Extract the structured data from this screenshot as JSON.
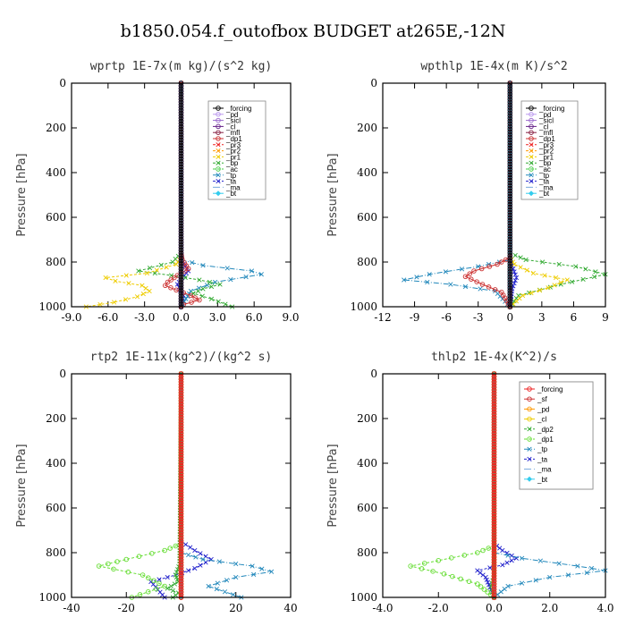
{
  "figure_title": "b1850.054.f_outofbox  BUDGET at265E,-12N",
  "chart_data": [
    {
      "type": "line",
      "title": "wprtp  1E-7x(m kg)/(s^2 kg)",
      "ylabel": "Pressure [hPa]",
      "xlim": [
        -9,
        9
      ],
      "ylim": [
        1000,
        0
      ],
      "xticks": [
        -9,
        -6,
        -3,
        0,
        3,
        6,
        9
      ],
      "xtick_labels": [
        "-9.0",
        "-6.0",
        "-3.0",
        "0.0",
        "3.0",
        "6.0",
        "9.0"
      ],
      "yticks": [
        0,
        200,
        400,
        600,
        800,
        1000
      ],
      "legend_position": "top-right",
      "series": [
        {
          "name": "_forcing",
          "color": "#000000",
          "marker": "circle",
          "dash": "",
          "x": [
            0.0,
            0.0
          ],
          "p": [
            0,
            1000
          ]
        },
        {
          "name": "_pd",
          "color": "#bb99ee",
          "marker": "circle",
          "dash": "",
          "x": [
            0.0,
            0.0
          ],
          "p": [
            0,
            1000
          ]
        },
        {
          "name": "_sicl",
          "color": "#9966cc",
          "marker": "circle",
          "dash": "",
          "x": [
            0.0,
            0.0
          ],
          "p": [
            0,
            1000
          ]
        },
        {
          "name": "_cl",
          "color": "#662288",
          "marker": "circle",
          "dash": "",
          "x": [
            0.0,
            0.0
          ],
          "p": [
            0,
            1000
          ]
        },
        {
          "name": "_mfl",
          "color": "#882244",
          "marker": "circle",
          "dash": "",
          "x": [
            0.0,
            0.0
          ],
          "p": [
            0,
            1000
          ]
        },
        {
          "name": "_dp1",
          "color": "#cc3333",
          "marker": "circle",
          "dash": "",
          "x": [
            0.0,
            0.1,
            0.6,
            -0.3,
            -1.1,
            -1.3,
            -0.4,
            0.8,
            1.5,
            0.2,
            0.0
          ],
          "p": [
            760,
            790,
            830,
            860,
            890,
            905,
            925,
            950,
            970,
            990,
            1000
          ]
        },
        {
          "name": "_pr3",
          "color": "#ee2222",
          "marker": "x",
          "dash": "3,2",
          "x": [
            0.0,
            0.0
          ],
          "p": [
            0,
            1000
          ]
        },
        {
          "name": "_pr2",
          "color": "#ff9900",
          "marker": "x",
          "dash": "3,2",
          "x": [
            0.0,
            0.0
          ],
          "p": [
            0,
            1000
          ]
        },
        {
          "name": "_pr1",
          "color": "#eecc00",
          "marker": "x",
          "dash": "3,2",
          "x": [
            0.0,
            -0.4,
            -2.8,
            -6.2,
            -5.4,
            -3.2,
            -2.6,
            -3.6,
            -5.5,
            -7.8
          ],
          "p": [
            780,
            810,
            850,
            870,
            885,
            905,
            930,
            955,
            980,
            1000
          ]
        },
        {
          "name": "_bp",
          "color": "#33aa33",
          "marker": "x",
          "dash": "3,2",
          "x": [
            0.0,
            -0.7,
            -3.5,
            -0.8,
            1.5,
            3.2,
            1.8,
            1.0,
            2.5,
            4.2
          ],
          "p": [
            760,
            800,
            840,
            860,
            880,
            900,
            920,
            940,
            965,
            1000
          ]
        },
        {
          "name": "_ac",
          "color": "#44cc44",
          "marker": "circle",
          "dash": "3,2",
          "x": [
            0.0,
            0.0
          ],
          "p": [
            0,
            1000
          ]
        },
        {
          "name": "_tp",
          "color": "#2288bb",
          "marker": "x",
          "dash": "6,2,1,2",
          "x": [
            0.0,
            1.8,
            5.8,
            6.6,
            2.8,
            0.8,
            0.0
          ],
          "p": [
            790,
            815,
            840,
            855,
            890,
            930,
            1000
          ]
        },
        {
          "name": "_ta",
          "color": "#2222cc",
          "marker": "x",
          "dash": "3,2",
          "x": [
            0.0,
            0.2,
            0.6,
            0.1,
            -0.3,
            0.2,
            0.0
          ],
          "p": [
            790,
            810,
            840,
            870,
            900,
            950,
            1000
          ]
        },
        {
          "name": "_ma",
          "color": "#77aadd",
          "marker": "none",
          "dash": "8,3",
          "x": [
            0.0,
            0.0
          ],
          "p": [
            0,
            1000
          ]
        },
        {
          "name": "_bt",
          "color": "#33ccee",
          "marker": "diamond",
          "dash": "",
          "x": [
            0.0,
            0.0
          ],
          "p": [
            0,
            1000
          ]
        }
      ]
    },
    {
      "type": "line",
      "title": "wpthlp  1E-4x(m K)/s^2",
      "ylabel": "Pressure [hPa]",
      "xlim": [
        -12,
        9
      ],
      "ylim": [
        1000,
        0
      ],
      "xticks": [
        -12,
        -9,
        -6,
        -3,
        0,
        3,
        6,
        9
      ],
      "xtick_labels": [
        "-12",
        "-9",
        "-6",
        "-3",
        "0",
        "3",
        "6",
        "9"
      ],
      "yticks": [
        0,
        200,
        400,
        600,
        800,
        1000
      ],
      "legend_position": "top-right",
      "series": [
        {
          "name": "_forcing",
          "color": "#000000",
          "marker": "circle",
          "dash": "",
          "x": [
            0.0,
            0.0
          ],
          "p": [
            0,
            1000
          ]
        },
        {
          "name": "_pd",
          "color": "#bb99ee",
          "marker": "circle",
          "dash": "",
          "x": [
            0.0,
            0.0
          ],
          "p": [
            0,
            1000
          ]
        },
        {
          "name": "_sicl",
          "color": "#9966cc",
          "marker": "circle",
          "dash": "",
          "x": [
            0.0,
            0.0
          ],
          "p": [
            0,
            1000
          ]
        },
        {
          "name": "_cl",
          "color": "#662288",
          "marker": "circle",
          "dash": "",
          "x": [
            0.0,
            0.0
          ],
          "p": [
            0,
            1000
          ]
        },
        {
          "name": "_mfl",
          "color": "#882244",
          "marker": "circle",
          "dash": "",
          "x": [
            0.0,
            0.0
          ],
          "p": [
            0,
            1000
          ]
        },
        {
          "name": "_dp1",
          "color": "#cc3333",
          "marker": "circle",
          "dash": "",
          "x": [
            0.0,
            -1.2,
            -3.4,
            -4.2,
            -2.6,
            -0.8,
            0.0
          ],
          "p": [
            780,
            810,
            840,
            865,
            900,
            935,
            1000
          ]
        },
        {
          "name": "_pr3",
          "color": "#ee2222",
          "marker": "x",
          "dash": "3,2",
          "x": [
            0.0,
            0.0
          ],
          "p": [
            0,
            1000
          ]
        },
        {
          "name": "_pr2",
          "color": "#ff9900",
          "marker": "x",
          "dash": "3,2",
          "x": [
            0.0,
            0.0
          ],
          "p": [
            0,
            1000
          ]
        },
        {
          "name": "_pr1",
          "color": "#eecc00",
          "marker": "x",
          "dash": "3,2",
          "x": [
            0.0,
            0.4,
            2.2,
            5.4,
            3.6,
            1.2,
            0.0
          ],
          "p": [
            780,
            810,
            850,
            880,
            915,
            950,
            1000
          ]
        },
        {
          "name": "_bp",
          "color": "#33aa33",
          "marker": "x",
          "dash": "3,2",
          "x": [
            0.0,
            1.5,
            6.2,
            9.0,
            4.8,
            0.8,
            0.0
          ],
          "p": [
            760,
            790,
            820,
            855,
            900,
            950,
            1000
          ]
        },
        {
          "name": "_ac",
          "color": "#44cc44",
          "marker": "circle",
          "dash": "3,2",
          "x": [
            0.0,
            0.0
          ],
          "p": [
            0,
            1000
          ]
        },
        {
          "name": "_tp",
          "color": "#2288bb",
          "marker": "x",
          "dash": "6,2,1,2",
          "x": [
            0.0,
            -3.0,
            -7.6,
            -10.0,
            -5.6,
            -1.4,
            0.0
          ],
          "p": [
            790,
            820,
            855,
            880,
            900,
            930,
            1000
          ]
        },
        {
          "name": "_ta",
          "color": "#2222cc",
          "marker": "x",
          "dash": "3,2",
          "x": [
            0.0,
            0.3,
            0.6,
            0.2,
            0.0
          ],
          "p": [
            790,
            830,
            870,
            920,
            1000
          ]
        },
        {
          "name": "_ma",
          "color": "#77aadd",
          "marker": "none",
          "dash": "8,3",
          "x": [
            0.0,
            0.0
          ],
          "p": [
            0,
            1000
          ]
        },
        {
          "name": "_bt",
          "color": "#33ccee",
          "marker": "diamond",
          "dash": "",
          "x": [
            0.0,
            0.0
          ],
          "p": [
            0,
            1000
          ]
        }
      ]
    },
    {
      "type": "line",
      "title": "rtp2  1E-11x(kg^2)/(kg^2 s)",
      "ylabel": "Pressure [hPa]",
      "xlim": [
        -40,
        40
      ],
      "ylim": [
        1000,
        0
      ],
      "xticks": [
        -40,
        -20,
        0,
        20,
        40
      ],
      "xtick_labels": [
        "-40",
        "-20",
        "0",
        "20",
        "40"
      ],
      "yticks": [
        0,
        200,
        400,
        600,
        800,
        1000
      ],
      "legend_position": "top-right",
      "series": [
        {
          "name": "_forcing",
          "color": "#ee2222",
          "marker": "circle",
          "dash": "",
          "x": [
            0.0,
            0.0
          ],
          "p": [
            0,
            1000
          ]
        },
        {
          "name": "_sf",
          "color": "#cc3333",
          "marker": "circle",
          "dash": "",
          "x": [
            0.0,
            0.0
          ],
          "p": [
            0,
            1000
          ]
        },
        {
          "name": "_pd",
          "color": "#ff9900",
          "marker": "circle",
          "dash": "",
          "x": [
            0.0,
            0.0
          ],
          "p": [
            0,
            1000
          ]
        },
        {
          "name": "_cl",
          "color": "#eecc00",
          "marker": "circle",
          "dash": "",
          "x": [
            0.0,
            0.0
          ],
          "p": [
            0,
            1000
          ]
        },
        {
          "name": "_dp2",
          "color": "#33aa33",
          "marker": "x",
          "dash": "3,2",
          "x": [
            0.0,
            -0.5,
            -2.0,
            -1.0,
            -5.0,
            -1.0,
            -3.0
          ],
          "p": [
            0,
            850,
            900,
            930,
            960,
            980,
            1000
          ]
        },
        {
          "name": "_dp1",
          "color": "#66dd33",
          "marker": "circle",
          "dash": "3,2",
          "x": [
            0.0,
            -6.0,
            -20.0,
            -30.0,
            -14.0,
            -6.0,
            -18.0
          ],
          "p": [
            760,
            790,
            830,
            860,
            900,
            950,
            1000
          ]
        },
        {
          "name": "_tp",
          "color": "#2288bb",
          "marker": "x",
          "dash": "6,2,1,2",
          "x": [
            0.0,
            8.0,
            26.0,
            33.0,
            20.0,
            10.0,
            22.0
          ],
          "p": [
            800,
            830,
            860,
            885,
            910,
            950,
            1000
          ]
        },
        {
          "name": "_ta",
          "color": "#2222cc",
          "marker": "x",
          "dash": "3,2",
          "x": [
            0.0,
            5.0,
            11.0,
            5.0,
            -2.0,
            -11.0,
            -6.0
          ],
          "p": [
            750,
            790,
            830,
            870,
            900,
            930,
            1000
          ]
        },
        {
          "name": "_ma",
          "color": "#77aadd",
          "marker": "none",
          "dash": "8,3",
          "x": [
            0.0,
            0.0
          ],
          "p": [
            0,
            1000
          ]
        },
        {
          "name": "_bt",
          "color": "#33ccee",
          "marker": "diamond",
          "dash": "",
          "x": [
            0.0,
            0.0
          ],
          "p": [
            0,
            1000
          ]
        }
      ]
    },
    {
      "type": "line",
      "title": "thlp2  1E-4x(K^2)/s",
      "ylabel": "Pressure [hPa]",
      "xlim": [
        -4,
        4
      ],
      "ylim": [
        1000,
        0
      ],
      "xticks": [
        -4,
        -2,
        0,
        2,
        4
      ],
      "xtick_labels": [
        "-4.0",
        "-2.0",
        "0.0",
        "2.0",
        "4.0"
      ],
      "yticks": [
        0,
        200,
        400,
        600,
        800,
        1000
      ],
      "legend_position": "top-right",
      "series": [
        {
          "name": "_forcing",
          "color": "#ee2222",
          "marker": "circle",
          "dash": "",
          "x": [
            0.0,
            0.0
          ],
          "p": [
            0,
            1000
          ]
        },
        {
          "name": "_sf",
          "color": "#cc3333",
          "marker": "circle",
          "dash": "",
          "x": [
            0.0,
            0.0
          ],
          "p": [
            0,
            1000
          ]
        },
        {
          "name": "_pd",
          "color": "#ff9900",
          "marker": "circle",
          "dash": "",
          "x": [
            0.0,
            0.0
          ],
          "p": [
            0,
            1000
          ]
        },
        {
          "name": "_cl",
          "color": "#eecc00",
          "marker": "circle",
          "dash": "",
          "x": [
            0.0,
            0.0
          ],
          "p": [
            0,
            1000
          ]
        },
        {
          "name": "_dp2",
          "color": "#33aa33",
          "marker": "x",
          "dash": "3,2",
          "x": [
            0.0,
            0.0,
            -0.1,
            0.0
          ],
          "p": [
            0,
            900,
            950,
            1000
          ]
        },
        {
          "name": "_dp1",
          "color": "#66dd33",
          "marker": "circle",
          "dash": "3,2",
          "x": [
            0.0,
            -0.6,
            -2.0,
            -3.0,
            -1.8,
            -0.6,
            0.0
          ],
          "p": [
            770,
            800,
            835,
            860,
            895,
            940,
            1000
          ]
        },
        {
          "name": "_tp",
          "color": "#2288bb",
          "marker": "x",
          "dash": "6,2,1,2",
          "x": [
            0.0,
            1.0,
            3.0,
            4.0,
            2.0,
            0.5,
            0.0
          ],
          "p": [
            800,
            825,
            860,
            880,
            910,
            950,
            1000
          ]
        },
        {
          "name": "_ta",
          "color": "#2222cc",
          "marker": "x",
          "dash": "3,2",
          "x": [
            0.0,
            0.3,
            0.8,
            0.3,
            -0.6,
            -0.3,
            0.0
          ],
          "p": [
            760,
            790,
            825,
            855,
            880,
            910,
            1000
          ]
        },
        {
          "name": "_ma",
          "color": "#77aadd",
          "marker": "none",
          "dash": "8,3",
          "x": [
            0.0,
            0.0
          ],
          "p": [
            0,
            1000
          ]
        },
        {
          "name": "_bt",
          "color": "#33ccee",
          "marker": "diamond",
          "dash": "",
          "x": [
            0.0,
            0.0
          ],
          "p": [
            0,
            1000
          ]
        }
      ]
    }
  ]
}
